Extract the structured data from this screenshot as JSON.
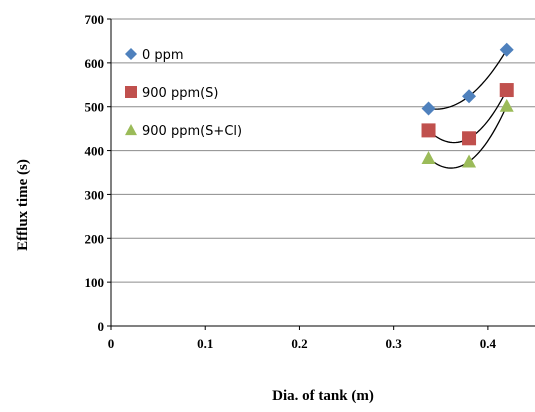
{
  "chart_data": {
    "type": "scatter",
    "xlabel": "Dia. of tank (m)",
    "ylabel": "Efflux time (s)",
    "xlim": [
      0,
      0.45
    ],
    "ylim": [
      0,
      700
    ],
    "x_ticks": [
      0,
      0.1,
      0.2,
      0.3,
      0.4
    ],
    "x_tick_labels": [
      "0",
      "0.1",
      "0.2",
      "0.3",
      "0.4"
    ],
    "y_ticks": [
      0,
      100,
      200,
      300,
      400,
      500,
      600,
      700
    ],
    "y_tick_labels": [
      "0",
      "100",
      "200",
      "300",
      "400",
      "500",
      "600",
      "700"
    ],
    "grid": "horizontal",
    "legend_position": "top-left",
    "trendline": "quadratic",
    "series": [
      {
        "name": "0 ppm",
        "marker": "diamond",
        "color": "#4F81BD",
        "x": [
          0.337,
          0.38,
          0.42
        ],
        "y": [
          496,
          524,
          630
        ]
      },
      {
        "name": "900 ppm(S)",
        "marker": "square",
        "color": "#C0504D",
        "x": [
          0.337,
          0.38,
          0.42
        ],
        "y": [
          446,
          428,
          538
        ]
      },
      {
        "name": "900 ppm(S+Cl)",
        "marker": "triangle",
        "color": "#9BBB59",
        "x": [
          0.337,
          0.38,
          0.42
        ],
        "y": [
          383,
          375,
          502
        ]
      }
    ]
  }
}
